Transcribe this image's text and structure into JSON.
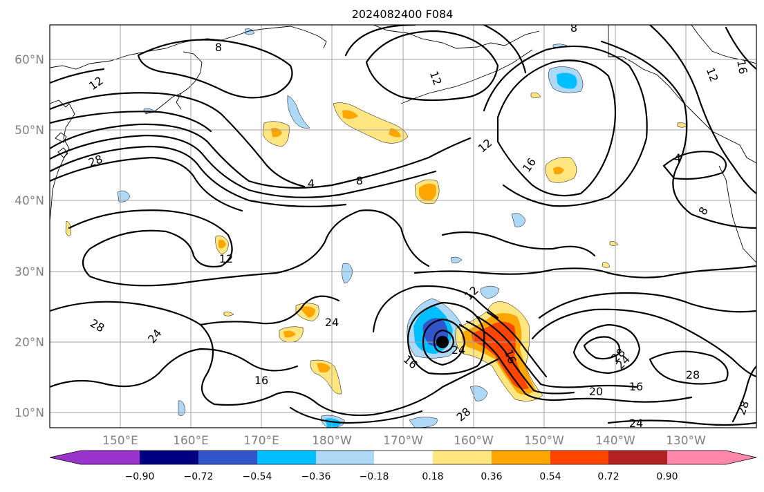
{
  "title": "2024082400 F084",
  "lat_labels": [
    "60°N",
    "50°N",
    "40°N",
    "30°N",
    "20°N",
    "10°N"
  ],
  "lon_labels": [
    "150°E",
    "160°E",
    "170°E",
    "180°W",
    "170°W",
    "160°W",
    "150°W",
    "140°W",
    "130°W"
  ],
  "contour_labels": [
    "4",
    "8",
    "8",
    "8",
    "12",
    "12",
    "12",
    "12",
    "12",
    "16",
    "16",
    "16",
    "16",
    "16",
    "16",
    "20",
    "24",
    "24",
    "24",
    "24",
    "24",
    "28",
    "28",
    "28",
    "28",
    "28",
    "28",
    "4",
    "8",
    "12"
  ],
  "colorbar": {
    "ticks": [
      "−0.90",
      "−0.72",
      "−0.54",
      "−0.36",
      "−0.18",
      "0.18",
      "0.36",
      "0.54",
      "0.72",
      "0.90"
    ],
    "colors": [
      "#9933cc",
      "#000080",
      "#3355cc",
      "#00bfff",
      "#add8f6",
      "#ffffff",
      "#ffe680",
      "#ffa500",
      "#ff4500",
      "#b22222",
      "#ff88aa"
    ]
  },
  "colors": {
    "neg_light": "#add8f6",
    "neg_mid": "#00bfff",
    "neg_strong": "#3355cc",
    "pos_light": "#ffe680",
    "pos_mid": "#ffa500",
    "pos_strong": "#ff4500"
  }
}
